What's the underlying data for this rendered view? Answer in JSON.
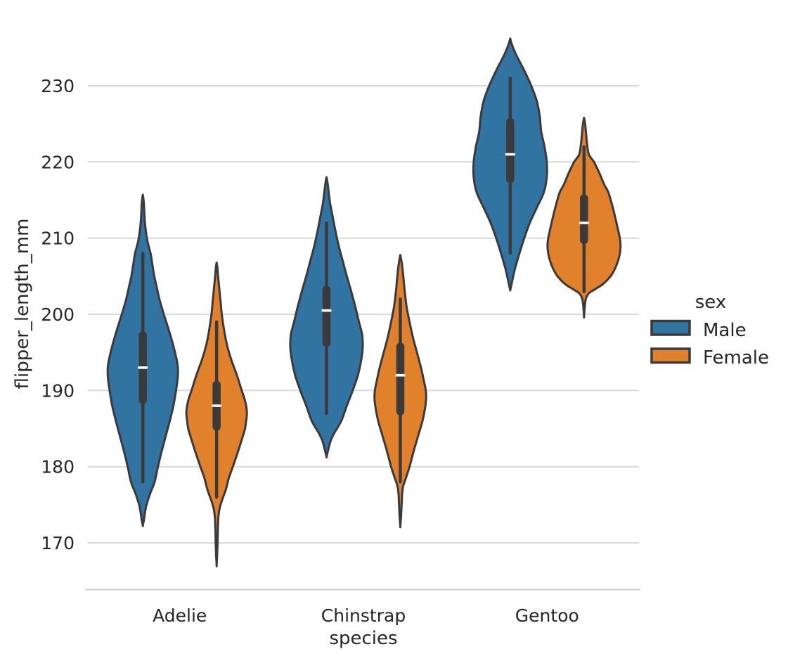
{
  "chart_data": {
    "type": "violin",
    "title": "",
    "xlabel": "species",
    "ylabel": "flipper_length_mm",
    "categories": [
      "Adelie",
      "Chinstrap",
      "Gentoo"
    ],
    "yticks": [
      170,
      180,
      190,
      200,
      210,
      220,
      230
    ],
    "ylim": [
      164,
      240.5
    ],
    "grid": true,
    "legend_position": "right",
    "inner": "box",
    "hue": {
      "title": "sex",
      "levels": [
        "Male",
        "Female"
      ],
      "colors": {
        "Male": "#3274a1",
        "Female": "#e1812c"
      }
    },
    "style": {
      "violin_edge": "#3a3a3a",
      "inner_box": "#3a3a3a",
      "median_mark": "#ffffff",
      "gridline": "#d9d9d9",
      "spine": "#cccccc",
      "text": "#262626"
    },
    "violins": [
      {
        "species": "Adelie",
        "sex": "Male",
        "color": "#3274a1",
        "stats": {
          "whisker_low": 178,
          "q1": 188.5,
          "median": 193,
          "q3": 197.5,
          "whisker_high": 208,
          "kde_min": 172.3,
          "kde_max": 215.7
        },
        "kde": [
          [
            215.7,
            0
          ],
          [
            215,
            0.02
          ],
          [
            214,
            0.035
          ],
          [
            212.5,
            0.05
          ],
          [
            211,
            0.08
          ],
          [
            209.5,
            0.13
          ],
          [
            208,
            0.21
          ],
          [
            206.5,
            0.26
          ],
          [
            205,
            0.31
          ],
          [
            203.5,
            0.38
          ],
          [
            202,
            0.45
          ],
          [
            200,
            0.57
          ],
          [
            198,
            0.7
          ],
          [
            196,
            0.82
          ],
          [
            194,
            0.92
          ],
          [
            193,
            0.95
          ],
          [
            192,
            0.95
          ],
          [
            191,
            0.93
          ],
          [
            190,
            0.9
          ],
          [
            188,
            0.83
          ],
          [
            186,
            0.73
          ],
          [
            184,
            0.62
          ],
          [
            182,
            0.51
          ],
          [
            180,
            0.41
          ],
          [
            178,
            0.32
          ],
          [
            176.5,
            0.2
          ],
          [
            175,
            0.1
          ],
          [
            174,
            0.06
          ],
          [
            173,
            0.03
          ],
          [
            172.3,
            0
          ]
        ]
      },
      {
        "species": "Adelie",
        "sex": "Female",
        "color": "#e1812c",
        "stats": {
          "whisker_low": 176,
          "q1": 185,
          "median": 188,
          "q3": 191,
          "whisker_high": 199,
          "kde_min": 167.1,
          "kde_max": 206.8
        },
        "kde": [
          [
            206.8,
            0
          ],
          [
            206.2,
            0.02
          ],
          [
            205.5,
            0.03
          ],
          [
            204.5,
            0.05
          ],
          [
            203,
            0.08
          ],
          [
            201.5,
            0.11
          ],
          [
            200,
            0.14
          ],
          [
            198,
            0.2
          ],
          [
            196,
            0.28
          ],
          [
            194,
            0.4
          ],
          [
            192,
            0.55
          ],
          [
            190,
            0.68
          ],
          [
            189,
            0.75
          ],
          [
            188,
            0.8
          ],
          [
            187,
            0.82
          ],
          [
            186,
            0.8
          ],
          [
            185,
            0.77
          ],
          [
            184,
            0.71
          ],
          [
            182,
            0.58
          ],
          [
            180,
            0.44
          ],
          [
            178.5,
            0.33
          ],
          [
            177,
            0.25
          ],
          [
            175.5,
            0.14
          ],
          [
            174.5,
            0.08
          ],
          [
            173.5,
            0.05
          ],
          [
            172,
            0.035
          ],
          [
            170,
            0.025
          ],
          [
            168.5,
            0.015
          ],
          [
            167.1,
            0
          ]
        ]
      },
      {
        "species": "Chinstrap",
        "sex": "Male",
        "color": "#3274a1",
        "stats": {
          "whisker_low": 187,
          "q1": 196,
          "median": 200.5,
          "q3": 203.5,
          "whisker_high": 212,
          "kde_min": 181.3,
          "kde_max": 218
        },
        "kde": [
          [
            218,
            0
          ],
          [
            217.2,
            0.03
          ],
          [
            216,
            0.06
          ],
          [
            214.5,
            0.1
          ],
          [
            213,
            0.16
          ],
          [
            211,
            0.24
          ],
          [
            209,
            0.33
          ],
          [
            207,
            0.44
          ],
          [
            205,
            0.55
          ],
          [
            203,
            0.67
          ],
          [
            201,
            0.78
          ],
          [
            199,
            0.88
          ],
          [
            197.5,
            0.96
          ],
          [
            196.5,
            0.98
          ],
          [
            195.5,
            0.98
          ],
          [
            194,
            0.94
          ],
          [
            192,
            0.85
          ],
          [
            190,
            0.71
          ],
          [
            188,
            0.55
          ],
          [
            186,
            0.4
          ],
          [
            184.5,
            0.22
          ],
          [
            183.5,
            0.12
          ],
          [
            182.5,
            0.06
          ],
          [
            181.9,
            0.03
          ],
          [
            181.3,
            0
          ]
        ]
      },
      {
        "species": "Chinstrap",
        "sex": "Female",
        "color": "#e1812c",
        "stats": {
          "whisker_low": 178,
          "q1": 187,
          "median": 192,
          "q3": 196,
          "whisker_high": 202,
          "kde_min": 172.2,
          "kde_max": 207.8
        },
        "kde": [
          [
            207.8,
            0
          ],
          [
            207,
            0.03
          ],
          [
            206,
            0.06
          ],
          [
            204.5,
            0.09
          ],
          [
            203,
            0.12
          ],
          [
            201,
            0.17
          ],
          [
            199,
            0.25
          ],
          [
            197,
            0.34
          ],
          [
            195,
            0.45
          ],
          [
            193,
            0.56
          ],
          [
            191,
            0.65
          ],
          [
            190,
            0.69
          ],
          [
            189,
            0.7
          ],
          [
            188,
            0.68
          ],
          [
            186,
            0.6
          ],
          [
            184,
            0.48
          ],
          [
            182,
            0.36
          ],
          [
            180,
            0.25
          ],
          [
            178.5,
            0.15
          ],
          [
            177.5,
            0.08
          ],
          [
            176.5,
            0.05
          ],
          [
            175,
            0.035
          ],
          [
            173.5,
            0.02
          ],
          [
            172.2,
            0
          ]
        ]
      },
      {
        "species": "Gentoo",
        "sex": "Male",
        "color": "#3274a1",
        "stats": {
          "whisker_low": 208,
          "q1": 217.5,
          "median": 221,
          "q3": 225.5,
          "whisker_high": 231,
          "kde_min": 203.2,
          "kde_max": 236.2
        },
        "kde": [
          [
            236.2,
            0
          ],
          [
            235.5,
            0.04
          ],
          [
            234.5,
            0.12
          ],
          [
            233.5,
            0.22
          ],
          [
            232,
            0.38
          ],
          [
            230,
            0.57
          ],
          [
            228,
            0.72
          ],
          [
            226,
            0.8
          ],
          [
            224,
            0.84
          ],
          [
            222,
            0.93
          ],
          [
            220,
            0.99
          ],
          [
            218,
            0.99
          ],
          [
            216,
            0.91
          ],
          [
            214,
            0.72
          ],
          [
            212,
            0.53
          ],
          [
            210,
            0.38
          ],
          [
            208,
            0.25
          ],
          [
            206,
            0.13
          ],
          [
            204.5,
            0.06
          ],
          [
            203.6,
            0.02
          ],
          [
            203.2,
            0
          ]
        ]
      },
      {
        "species": "Gentoo",
        "sex": "Female",
        "color": "#e1812c",
        "stats": {
          "whisker_low": 203,
          "q1": 209.5,
          "median": 212,
          "q3": 215.5,
          "whisker_high": 222,
          "kde_min": 199.8,
          "kde_max": 225.8
        },
        "kde": [
          [
            225.8,
            0
          ],
          [
            225,
            0.03
          ],
          [
            224,
            0.05
          ],
          [
            222.5,
            0.08
          ],
          [
            221,
            0.13
          ],
          [
            220,
            0.27
          ],
          [
            218.5,
            0.42
          ],
          [
            217,
            0.55
          ],
          [
            216,
            0.66
          ],
          [
            214,
            0.78
          ],
          [
            212,
            0.88
          ],
          [
            210,
            0.97
          ],
          [
            209,
            0.99
          ],
          [
            208,
            0.97
          ],
          [
            207,
            0.92
          ],
          [
            206,
            0.84
          ],
          [
            205,
            0.72
          ],
          [
            204,
            0.52
          ],
          [
            203.3,
            0.3
          ],
          [
            202.8,
            0.14
          ],
          [
            202.2,
            0.06
          ],
          [
            201.5,
            0.03
          ],
          [
            199.8,
            0
          ]
        ]
      }
    ]
  }
}
